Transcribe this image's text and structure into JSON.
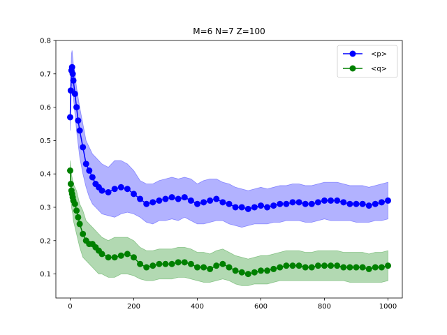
{
  "chart_data": {
    "type": "line",
    "title": "M=6 N=7 Z=100",
    "xlabel": "",
    "ylabel": "",
    "xlim": [
      -45,
      1045
    ],
    "ylim": [
      0.028,
      0.8
    ],
    "xticks": [
      0,
      200,
      400,
      600,
      800,
      1000
    ],
    "yticks": [
      0.1,
      0.2,
      0.3,
      0.4,
      0.5,
      0.6,
      0.7,
      0.8
    ],
    "grid": false,
    "legend_position": "top-right",
    "x": [
      0,
      2,
      4,
      6,
      8,
      10,
      15,
      20,
      25,
      30,
      40,
      50,
      60,
      70,
      80,
      90,
      100,
      120,
      140,
      160,
      180,
      200,
      220,
      240,
      260,
      280,
      300,
      320,
      340,
      360,
      380,
      400,
      420,
      440,
      460,
      480,
      500,
      520,
      540,
      560,
      580,
      600,
      620,
      640,
      660,
      680,
      700,
      720,
      740,
      760,
      780,
      800,
      820,
      840,
      860,
      880,
      900,
      920,
      940,
      960,
      980,
      1000
    ],
    "series": [
      {
        "name": "<p>",
        "color": "#0000ff",
        "fill_color": "#0000ff",
        "values": [
          0.57,
          0.65,
          0.71,
          0.72,
          0.7,
          0.68,
          0.64,
          0.6,
          0.56,
          0.53,
          0.48,
          0.43,
          0.41,
          0.39,
          0.37,
          0.36,
          0.35,
          0.345,
          0.355,
          0.36,
          0.355,
          0.34,
          0.325,
          0.31,
          0.315,
          0.32,
          0.325,
          0.33,
          0.325,
          0.33,
          0.32,
          0.31,
          0.315,
          0.32,
          0.325,
          0.315,
          0.31,
          0.3,
          0.3,
          0.295,
          0.3,
          0.305,
          0.3,
          0.305,
          0.31,
          0.31,
          0.315,
          0.315,
          0.31,
          0.31,
          0.315,
          0.32,
          0.32,
          0.32,
          0.315,
          0.31,
          0.31,
          0.31,
          0.305,
          0.31,
          0.315,
          0.32
        ],
        "lower": [
          0.53,
          0.6,
          0.66,
          0.67,
          0.65,
          0.63,
          0.58,
          0.53,
          0.49,
          0.45,
          0.4,
          0.36,
          0.33,
          0.31,
          0.3,
          0.29,
          0.28,
          0.275,
          0.27,
          0.28,
          0.285,
          0.28,
          0.27,
          0.255,
          0.25,
          0.26,
          0.26,
          0.265,
          0.26,
          0.27,
          0.26,
          0.25,
          0.25,
          0.255,
          0.26,
          0.26,
          0.25,
          0.245,
          0.24,
          0.245,
          0.25,
          0.25,
          0.25,
          0.255,
          0.255,
          0.26,
          0.26,
          0.26,
          0.255,
          0.255,
          0.26,
          0.265,
          0.26,
          0.26,
          0.26,
          0.26,
          0.255,
          0.255,
          0.255,
          0.26,
          0.26,
          0.265
        ],
        "upper": [
          0.6,
          0.7,
          0.76,
          0.77,
          0.75,
          0.73,
          0.7,
          0.66,
          0.63,
          0.6,
          0.55,
          0.5,
          0.48,
          0.46,
          0.45,
          0.44,
          0.43,
          0.42,
          0.44,
          0.44,
          0.43,
          0.41,
          0.38,
          0.37,
          0.37,
          0.38,
          0.385,
          0.39,
          0.385,
          0.39,
          0.385,
          0.37,
          0.38,
          0.385,
          0.385,
          0.375,
          0.37,
          0.36,
          0.355,
          0.35,
          0.355,
          0.36,
          0.355,
          0.36,
          0.365,
          0.365,
          0.37,
          0.37,
          0.365,
          0.365,
          0.37,
          0.375,
          0.375,
          0.375,
          0.37,
          0.365,
          0.365,
          0.365,
          0.36,
          0.365,
          0.37,
          0.375
        ]
      },
      {
        "name": "<q>",
        "color": "#008000",
        "fill_color": "#008000",
        "values": [
          0.41,
          0.37,
          0.35,
          0.34,
          0.33,
          0.32,
          0.31,
          0.29,
          0.27,
          0.25,
          0.22,
          0.2,
          0.19,
          0.19,
          0.18,
          0.17,
          0.16,
          0.15,
          0.15,
          0.155,
          0.16,
          0.15,
          0.13,
          0.12,
          0.125,
          0.13,
          0.13,
          0.13,
          0.135,
          0.135,
          0.13,
          0.12,
          0.12,
          0.115,
          0.125,
          0.13,
          0.12,
          0.11,
          0.105,
          0.1,
          0.105,
          0.11,
          0.11,
          0.115,
          0.12,
          0.125,
          0.125,
          0.125,
          0.12,
          0.12,
          0.125,
          0.125,
          0.125,
          0.125,
          0.12,
          0.12,
          0.12,
          0.12,
          0.115,
          0.12,
          0.12,
          0.125
        ],
        "lower": [
          0.37,
          0.33,
          0.3,
          0.29,
          0.28,
          0.26,
          0.24,
          0.22,
          0.2,
          0.18,
          0.15,
          0.14,
          0.13,
          0.12,
          0.11,
          0.1,
          0.1,
          0.09,
          0.09,
          0.1,
          0.1,
          0.095,
          0.085,
          0.08,
          0.08,
          0.085,
          0.085,
          0.085,
          0.09,
          0.09,
          0.085,
          0.08,
          0.075,
          0.075,
          0.08,
          0.085,
          0.08,
          0.07,
          0.065,
          0.065,
          0.07,
          0.07,
          0.07,
          0.075,
          0.08,
          0.08,
          0.08,
          0.08,
          0.08,
          0.08,
          0.08,
          0.08,
          0.08,
          0.08,
          0.08,
          0.075,
          0.075,
          0.075,
          0.075,
          0.075,
          0.075,
          0.08
        ],
        "upper": [
          0.44,
          0.42,
          0.4,
          0.39,
          0.38,
          0.37,
          0.36,
          0.35,
          0.33,
          0.31,
          0.29,
          0.26,
          0.25,
          0.24,
          0.23,
          0.22,
          0.21,
          0.2,
          0.21,
          0.21,
          0.21,
          0.2,
          0.18,
          0.17,
          0.17,
          0.175,
          0.175,
          0.175,
          0.18,
          0.18,
          0.175,
          0.165,
          0.165,
          0.16,
          0.17,
          0.175,
          0.165,
          0.155,
          0.15,
          0.145,
          0.15,
          0.155,
          0.155,
          0.16,
          0.165,
          0.17,
          0.17,
          0.17,
          0.165,
          0.165,
          0.17,
          0.17,
          0.17,
          0.17,
          0.165,
          0.165,
          0.165,
          0.165,
          0.16,
          0.165,
          0.165,
          0.17
        ]
      }
    ]
  }
}
